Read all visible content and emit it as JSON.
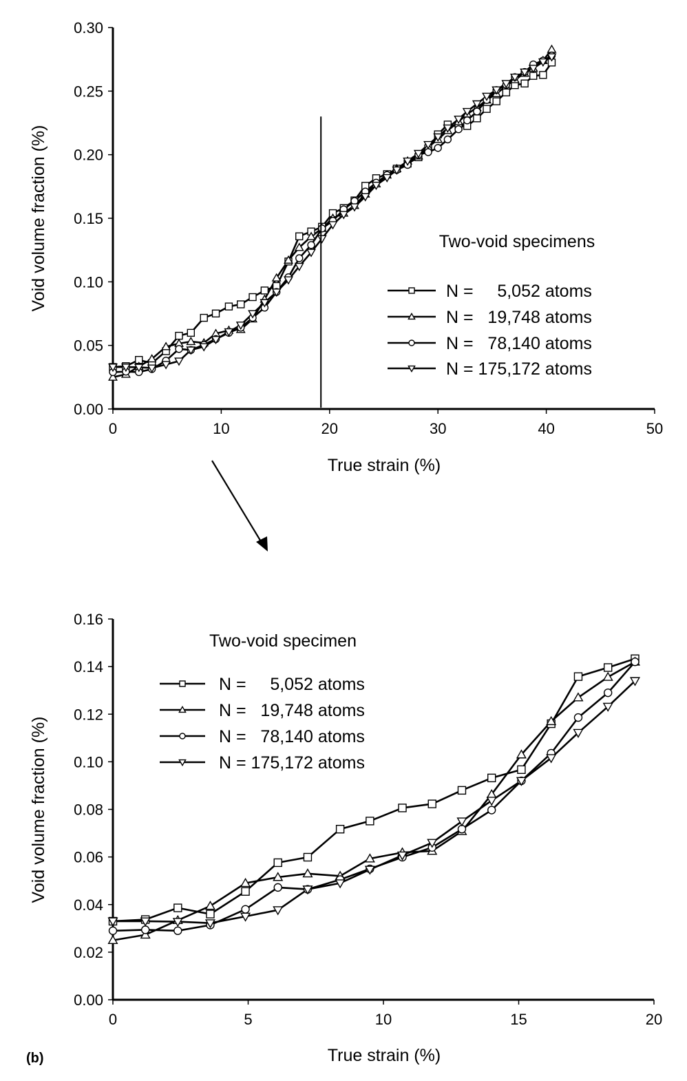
{
  "chart_data": [
    {
      "type": "line",
      "title": "",
      "xlabel": "True strain (%)",
      "ylabel": "Void volume fraction (%)",
      "xlim": [
        0,
        50
      ],
      "ylim": [
        0,
        0.3
      ],
      "xticks": [
        "0",
        "10",
        "20",
        "30",
        "40",
        "50"
      ],
      "yticks": [
        "0.00",
        "0.05",
        "0.10",
        "0.15",
        "0.20",
        "0.25",
        "0.30"
      ],
      "grid": false,
      "legend_title": "Two-void specimens",
      "legend_position": "center-right",
      "reference_line_x": 19.2,
      "reference_line_top": 0.23,
      "x": [
        0,
        1.2,
        2.4,
        3.6,
        4.9,
        6.1,
        7.2,
        8.4,
        9.5,
        10.7,
        11.8,
        12.9,
        14.0,
        15.1,
        16.2,
        17.2,
        18.3,
        19.3,
        20.3,
        21.3,
        22.3,
        23.3,
        24.3,
        25.3,
        26.2,
        27.2,
        28.2,
        29.1,
        30.0,
        30.9,
        31.9,
        32.7,
        33.6,
        34.5,
        35.4,
        36.3,
        37.1,
        38.0,
        38.8,
        39.7,
        40.5
      ],
      "series": [
        {
          "name": "N =     5,052 atoms",
          "marker": "square",
          "values": [
            0.033,
            0.0337,
            0.0386,
            0.036,
            0.0455,
            0.0576,
            0.0599,
            0.0717,
            0.0751,
            0.0806,
            0.0823,
            0.088,
            0.0932,
            0.0967,
            0.116,
            0.1358,
            0.1396,
            0.1433,
            0.154,
            0.158,
            0.164,
            0.1755,
            0.1815,
            0.1847,
            0.189,
            0.193,
            0.198,
            0.205,
            0.216,
            0.2237,
            0.222,
            0.2226,
            0.2286,
            0.236,
            0.242,
            0.249,
            0.2547,
            0.256,
            0.262,
            0.2627,
            0.2725
          ]
        },
        {
          "name": "N =   19,748 atoms",
          "marker": "triangle-up",
          "values": [
            0.025,
            0.0273,
            0.0334,
            0.0394,
            0.049,
            0.0515,
            0.053,
            0.052,
            0.0593,
            0.0619,
            0.0625,
            0.0708,
            0.0863,
            0.103,
            0.117,
            0.127,
            0.1356,
            0.142,
            0.15,
            0.154,
            0.16,
            0.169,
            0.177,
            0.184,
            0.189,
            0.195,
            0.199,
            0.206,
            0.212,
            0.219,
            0.226,
            0.232,
            0.237,
            0.243,
            0.248,
            0.254,
            0.259,
            0.264,
            0.268,
            0.274,
            0.2828
          ]
        },
        {
          "name": "N =   78,140 atoms",
          "marker": "circle",
          "values": [
            0.029,
            0.0294,
            0.029,
            0.0314,
            0.038,
            0.0472,
            0.0464,
            0.0505,
            0.055,
            0.0599,
            0.064,
            0.0717,
            0.0797,
            0.092,
            0.1036,
            0.1186,
            0.129,
            0.142,
            0.148,
            0.157,
            0.1636,
            0.171,
            0.178,
            0.184,
            0.188,
            0.192,
            0.2,
            0.202,
            0.2053,
            0.212,
            0.22,
            0.227,
            0.234,
            0.243,
            0.2508,
            0.255,
            0.261,
            0.265,
            0.271,
            0.274,
            0.278
          ]
        },
        {
          "name": "N = 175,172 atoms",
          "marker": "triangle-down",
          "values": [
            0.033,
            0.033,
            0.0328,
            0.0322,
            0.035,
            0.0377,
            0.0464,
            0.049,
            0.0547,
            0.0607,
            0.066,
            0.075,
            0.0837,
            0.092,
            0.1016,
            0.1122,
            0.1232,
            0.134,
            0.145,
            0.153,
            0.159,
            0.167,
            0.176,
            0.182,
            0.188,
            0.195,
            0.201,
            0.208,
            0.214,
            0.221,
            0.228,
            0.234,
            0.24,
            0.246,
            0.251,
            0.256,
            0.261,
            0.265,
            0.268,
            0.273,
            0.277
          ]
        }
      ]
    },
    {
      "type": "line",
      "title": "",
      "panel_label": "(b)",
      "xlabel": "True strain (%)",
      "ylabel": "Void volume fraction (%)",
      "xlim": [
        0,
        20
      ],
      "ylim": [
        0,
        0.16
      ],
      "xticks": [
        "0",
        "5",
        "10",
        "15",
        "20"
      ],
      "yticks": [
        "0.00",
        "0.02",
        "0.04",
        "0.06",
        "0.08",
        "0.10",
        "0.12",
        "0.14",
        "0.16"
      ],
      "grid": false,
      "legend_title": "Two-void specimen",
      "legend_position": "top-left",
      "x": [
        0,
        1.2,
        2.4,
        3.6,
        4.9,
        6.1,
        7.2,
        8.4,
        9.5,
        10.7,
        11.8,
        12.9,
        14.0,
        15.1,
        16.2,
        17.2,
        18.3,
        19.3
      ],
      "series": [
        {
          "name": "N =     5,052 atoms",
          "marker": "square",
          "values": [
            0.033,
            0.0337,
            0.0386,
            0.036,
            0.0455,
            0.0576,
            0.0599,
            0.0717,
            0.0751,
            0.0806,
            0.0823,
            0.088,
            0.0932,
            0.0967,
            0.116,
            0.1358,
            0.1396,
            0.1433
          ]
        },
        {
          "name": "N =   19,748 atoms",
          "marker": "triangle-up",
          "values": [
            0.025,
            0.0273,
            0.0334,
            0.0394,
            0.049,
            0.0515,
            0.053,
            0.052,
            0.0593,
            0.0619,
            0.0625,
            0.0708,
            0.0863,
            0.103,
            0.117,
            0.127,
            0.1356,
            0.142
          ]
        },
        {
          "name": "N =   78,140 atoms",
          "marker": "circle",
          "values": [
            0.029,
            0.0294,
            0.029,
            0.0314,
            0.038,
            0.0472,
            0.0464,
            0.0505,
            0.055,
            0.0599,
            0.064,
            0.0717,
            0.0797,
            0.092,
            0.1036,
            0.1186,
            0.129,
            0.142
          ]
        },
        {
          "name": "N = 175,172 atoms",
          "marker": "triangle-down",
          "values": [
            0.033,
            0.033,
            0.0328,
            0.0322,
            0.035,
            0.0377,
            0.0464,
            0.049,
            0.0547,
            0.0607,
            0.066,
            0.075,
            0.0837,
            0.092,
            0.1016,
            0.1122,
            0.1232,
            0.134
          ]
        }
      ]
    }
  ]
}
